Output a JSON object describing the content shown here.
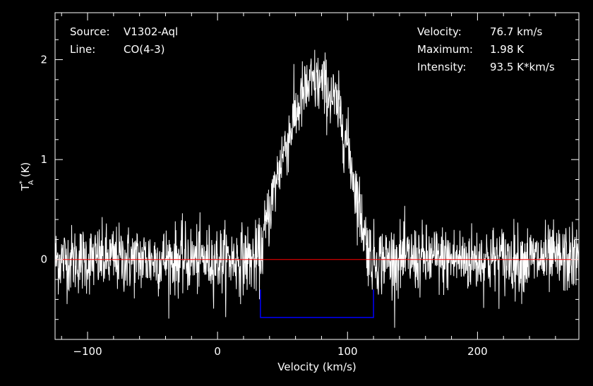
{
  "info": {
    "source_label": "Source:",
    "source_value": "V1302-Aql",
    "line_label": "Line:",
    "line_value": "CO(4-3)",
    "velocity_label": "Velocity:",
    "velocity_value": "76.7 km/s",
    "maximum_label": "Maximum:",
    "maximum_value": "1.98 K",
    "intensity_label": "Intensity:",
    "intensity_value": "93.5 K*km/s"
  },
  "chart_data": {
    "type": "line",
    "xlabel": "Velocity (km/s)",
    "ylabel_main": "T",
    "ylabel_sup": "*",
    "ylabel_sub": "A",
    "ylabel_unit": "(K)",
    "xlim": [
      -125,
      278
    ],
    "ylim": [
      -0.8,
      2.47
    ],
    "x_ticks": [
      -100,
      0,
      100,
      200
    ],
    "x_tick_labels": [
      "−100",
      "0",
      "100",
      "200"
    ],
    "y_ticks": [
      0,
      1,
      2
    ],
    "y_tick_labels": [
      "0",
      "1",
      "2"
    ],
    "grid": false,
    "baseline": {
      "y": 0,
      "color": "#ff0000"
    },
    "integration_window": {
      "x_start": 33,
      "x_end": 120,
      "y_bottom": -0.58,
      "y_top": -0.3,
      "color": "#0000ff"
    },
    "series": [
      {
        "color": "#ffffff",
        "noise_rms": 0.17,
        "profile": {
          "x": [
            -125,
            30,
            33,
            40,
            50,
            60,
            65,
            70,
            75,
            80,
            85,
            90,
            95,
            100,
            105,
            110,
            115,
            118,
            120,
            278
          ],
          "y": [
            0,
            0,
            0.05,
            0.5,
            1.05,
            1.45,
            1.62,
            1.72,
            1.78,
            1.75,
            1.68,
            1.58,
            1.42,
            1.15,
            0.8,
            0.45,
            0.15,
            0.04,
            0,
            0
          ]
        }
      }
    ]
  }
}
